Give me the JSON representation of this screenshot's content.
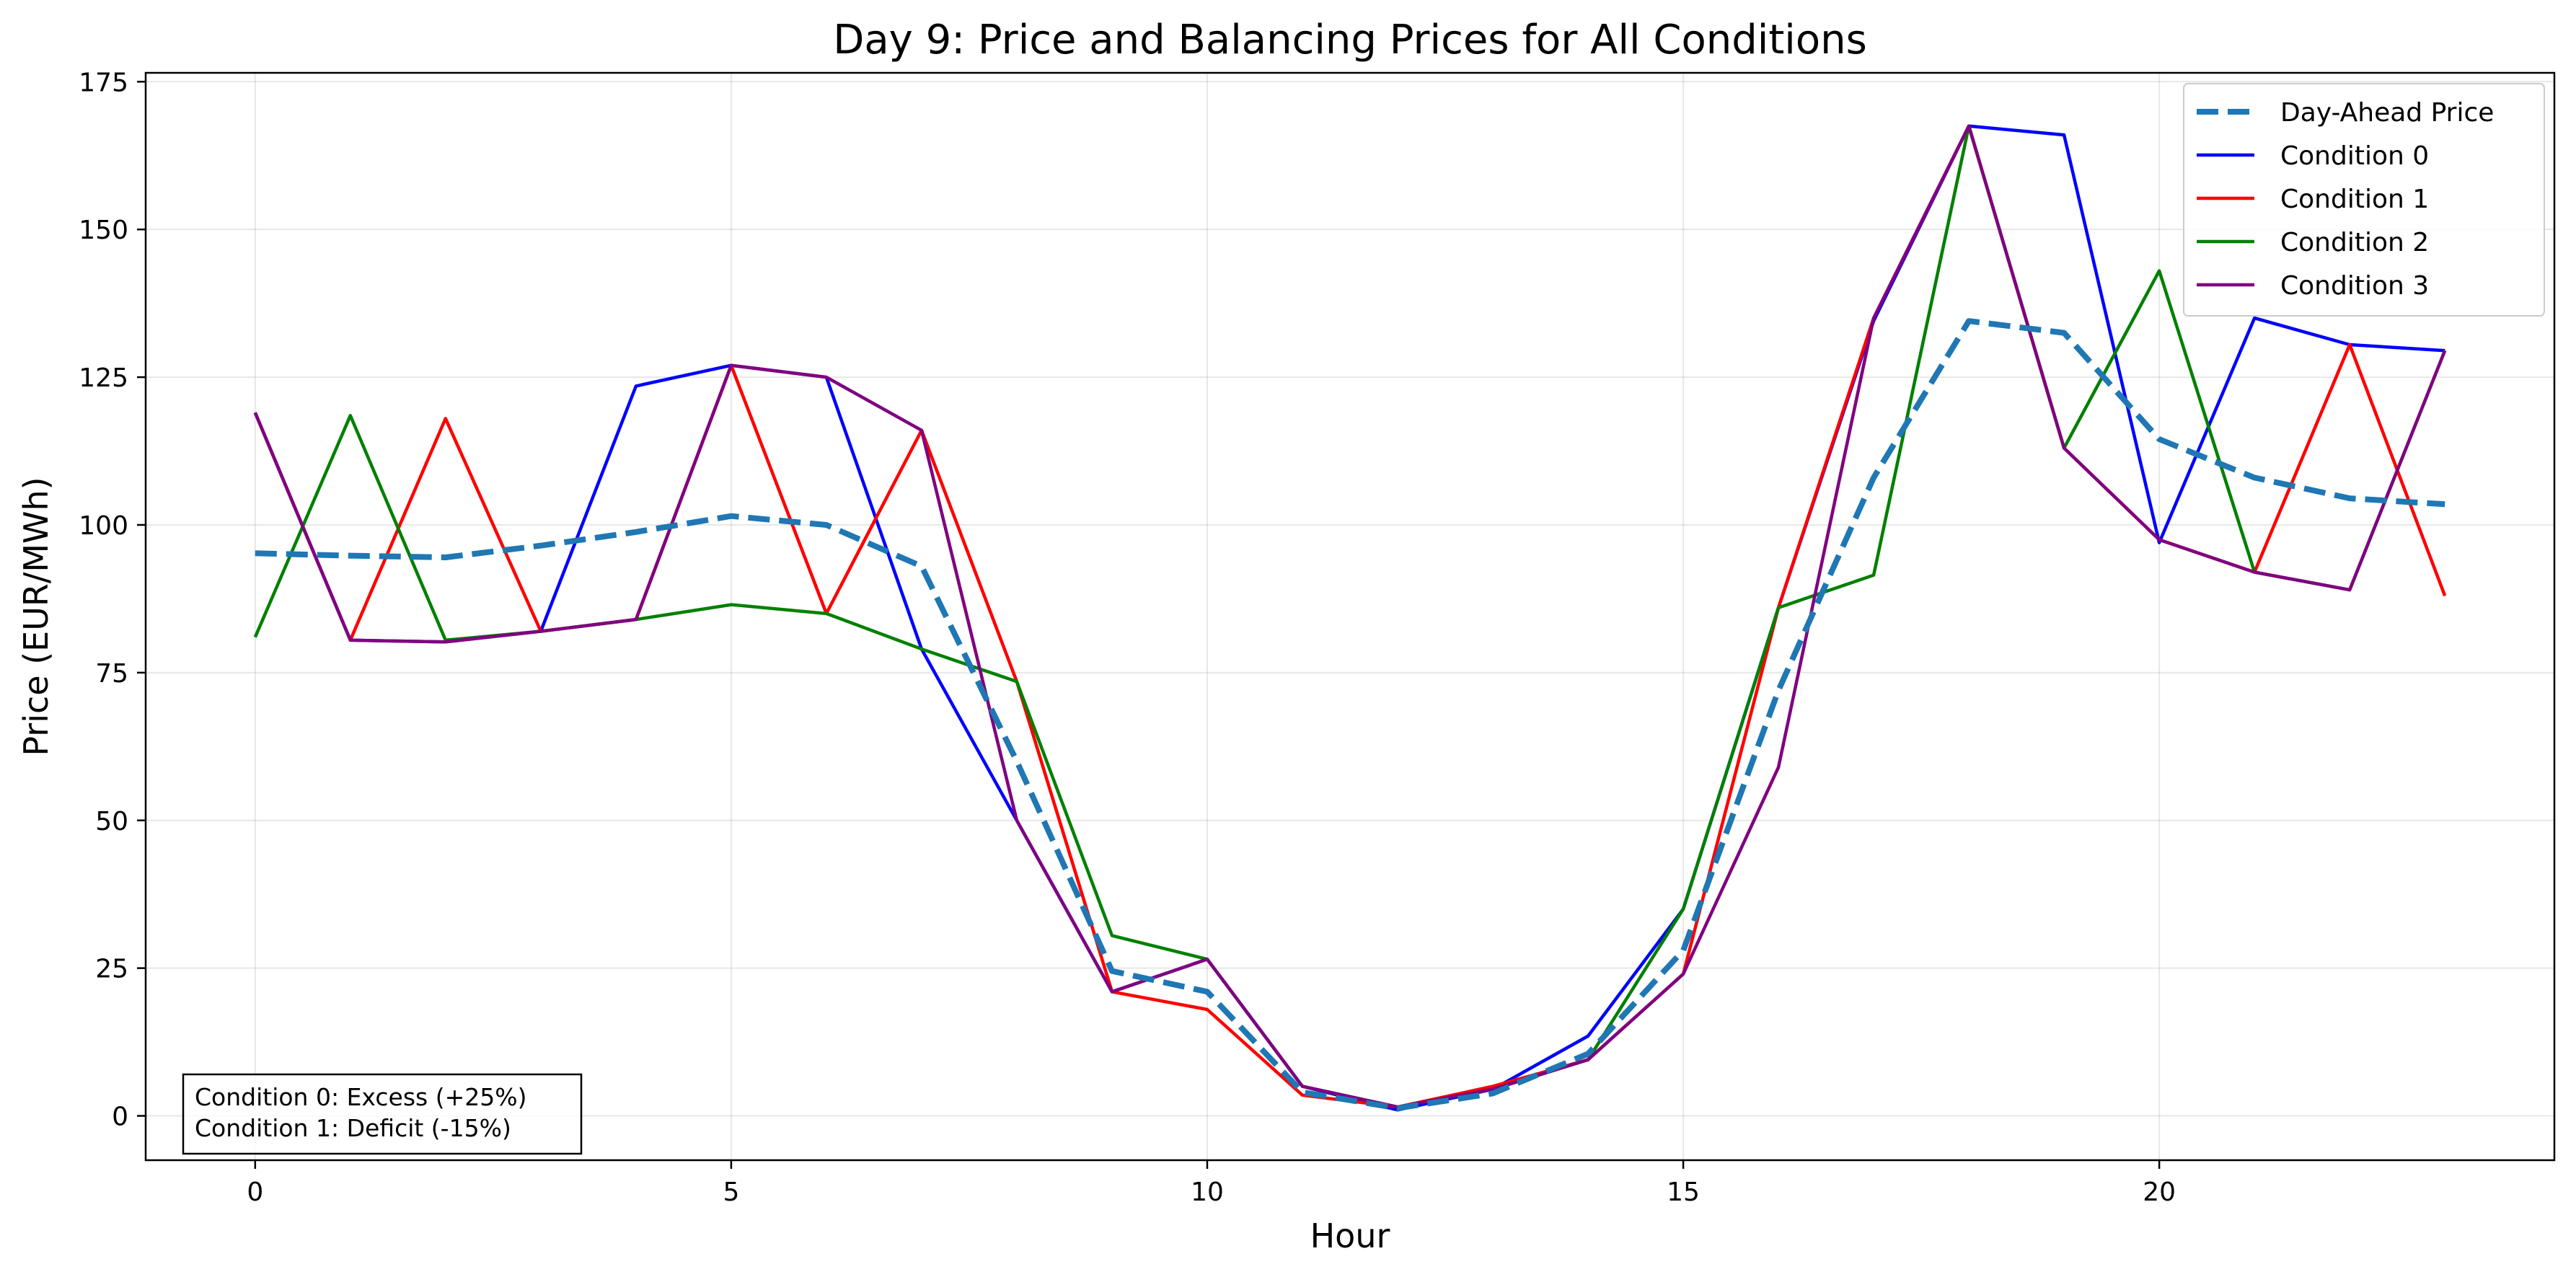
{
  "chart_data": {
    "type": "line",
    "title": "Day 9: Price and Balancing Prices for All Conditions",
    "xlabel": "Hour",
    "ylabel": "Price (EUR/MWh)",
    "xlim": [
      -1.15,
      24.15
    ],
    "ylim": [
      -7.5,
      176.5
    ],
    "xticks": [
      0,
      5,
      10,
      15,
      20
    ],
    "yticks": [
      0,
      25,
      50,
      75,
      100,
      125,
      150,
      175
    ],
    "grid": true,
    "legend_position": "upper right",
    "x": [
      0,
      1,
      2,
      3,
      4,
      5,
      6,
      7,
      8,
      9,
      10,
      11,
      12,
      13,
      14,
      15,
      16,
      17,
      18,
      19,
      20,
      21,
      22,
      23
    ],
    "series": [
      {
        "name": "Day-Ahead Price",
        "color": "#1f77b4",
        "style": "dashed",
        "values": [
          95.2,
          94.8,
          94.5,
          96.5,
          98.8,
          101.5,
          100.0,
          93.0,
          60.0,
          24.5,
          21.0,
          4.0,
          1.3,
          3.8,
          10.5,
          28.0,
          72.0,
          108.0,
          134.5,
          132.5,
          114.5,
          108.0,
          104.5,
          103.5
        ]
      },
      {
        "name": "Condition 0",
        "color": "#0000ff",
        "style": "solid",
        "values": [
          119.0,
          80.5,
          80.2,
          82.0,
          123.5,
          127.0,
          125.0,
          79.0,
          50.0,
          21.0,
          26.5,
          5.0,
          1.0,
          4.5,
          13.5,
          35.0,
          86.0,
          134.5,
          167.5,
          166.0,
          97.0,
          135.0,
          130.5,
          129.5
        ]
      },
      {
        "name": "Condition 1",
        "color": "#ff0000",
        "style": "solid",
        "values": [
          119.0,
          80.5,
          118.0,
          82.0,
          84.0,
          127.0,
          85.0,
          116.0,
          73.5,
          21.0,
          18.0,
          3.5,
          1.5,
          5.0,
          9.5,
          24.0,
          86.0,
          135.0,
          167.5,
          113.0,
          97.5,
          92.0,
          130.5,
          88.0
        ]
      },
      {
        "name": "Condition 2",
        "color": "#008000",
        "style": "solid",
        "values": [
          81.0,
          118.5,
          80.5,
          82.0,
          84.0,
          86.5,
          85.0,
          79.0,
          73.5,
          30.5,
          26.5,
          5.0,
          1.5,
          4.5,
          9.5,
          35.0,
          86.0,
          91.5,
          167.5,
          113.0,
          143.0,
          92.0,
          89.0,
          129.5
        ]
      },
      {
        "name": "Condition 3",
        "color": "#800080",
        "style": "solid",
        "values": [
          119.0,
          80.5,
          80.2,
          82.0,
          84.0,
          127.0,
          125.0,
          116.0,
          50.0,
          21.0,
          26.5,
          5.0,
          1.5,
          4.5,
          9.5,
          24.0,
          59.0,
          135.0,
          167.5,
          113.0,
          97.5,
          92.0,
          89.0,
          129.5
        ]
      }
    ],
    "annotation_lines": [
      "Condition 0: Excess (+25%)",
      "Condition 1: Deficit (-15%)"
    ]
  }
}
